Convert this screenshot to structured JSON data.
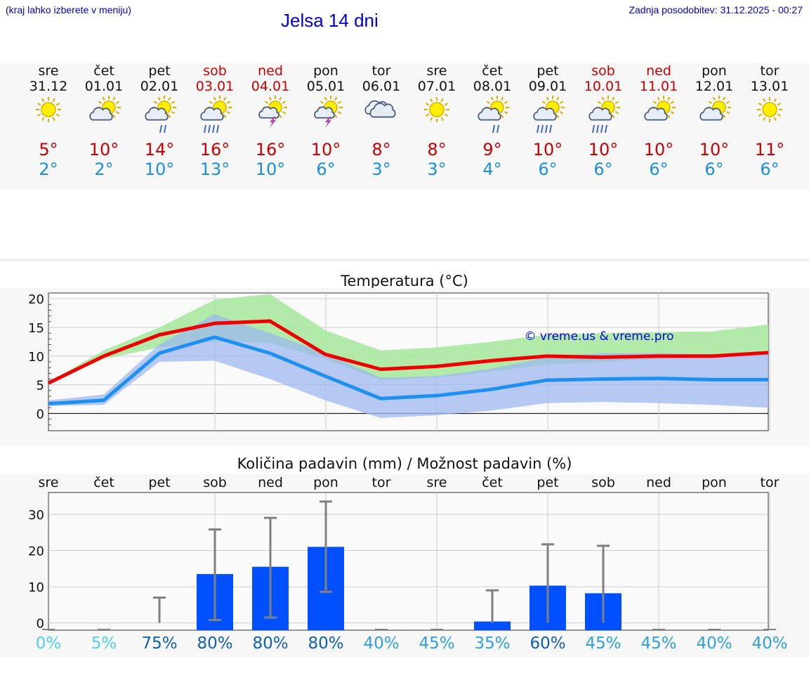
{
  "header": {
    "menu_hint": "(kraj lahko izberete v meniju)",
    "title": "Jelsa 14 dni",
    "updated": "Zadnja posodobitev: 31.12.2025 - 00:27"
  },
  "colors": {
    "weekday": "#111111",
    "weekend": "#cc0000",
    "tmax": "#cc0000",
    "tmin": "#1a8fe0",
    "temp_line_max": "#ee0000",
    "temp_line_min": "#2090f0",
    "band_max": "#a8e8a0",
    "band_min": "#9db8f0",
    "bar": "#0050ff",
    "errbar": "#808080"
  },
  "days": [
    {
      "dow": "sre",
      "date": "31.12",
      "weekend": false,
      "icon": "sun-icon",
      "tmax": "5°",
      "tmin": "2°"
    },
    {
      "dow": "čet",
      "date": "01.01",
      "weekend": false,
      "icon": "sun-cloud-icon",
      "tmax": "10°",
      "tmin": "2°"
    },
    {
      "dow": "pet",
      "date": "02.01",
      "weekend": false,
      "icon": "sun-cloud-rain-icon",
      "tmax": "14°",
      "tmin": "10°"
    },
    {
      "dow": "sob",
      "date": "03.01",
      "weekend": true,
      "icon": "sun-cloud-heavy-rain-icon",
      "tmax": "16°",
      "tmin": "13°"
    },
    {
      "dow": "ned",
      "date": "04.01",
      "weekend": true,
      "icon": "sun-thunder-icon",
      "tmax": "16°",
      "tmin": "10°"
    },
    {
      "dow": "pon",
      "date": "05.01",
      "weekend": false,
      "icon": "sun-thunder-icon",
      "tmax": "10°",
      "tmin": "6°"
    },
    {
      "dow": "tor",
      "date": "06.01",
      "weekend": false,
      "icon": "clouds-icon",
      "tmax": "8°",
      "tmin": "3°"
    },
    {
      "dow": "sre",
      "date": "07.01",
      "weekend": false,
      "icon": "sun-icon",
      "tmax": "8°",
      "tmin": "3°"
    },
    {
      "dow": "čet",
      "date": "08.01",
      "weekend": false,
      "icon": "sun-cloud-rain-icon",
      "tmax": "9°",
      "tmin": "4°"
    },
    {
      "dow": "pet",
      "date": "09.01",
      "weekend": false,
      "icon": "sun-cloud-heavy-rain-icon",
      "tmax": "10°",
      "tmin": "6°"
    },
    {
      "dow": "sob",
      "date": "10.01",
      "weekend": true,
      "icon": "sun-cloud-heavy-rain-icon",
      "tmax": "10°",
      "tmin": "6°"
    },
    {
      "dow": "ned",
      "date": "11.01",
      "weekend": true,
      "icon": "sun-cloud-icon",
      "tmax": "10°",
      "tmin": "6°"
    },
    {
      "dow": "pon",
      "date": "12.01",
      "weekend": false,
      "icon": "sun-cloud-icon",
      "tmax": "10°",
      "tmin": "6°"
    },
    {
      "dow": "tor",
      "date": "13.01",
      "weekend": false,
      "icon": "sun-icon",
      "tmax": "11°",
      "tmin": "6°"
    }
  ],
  "chart_data": [
    {
      "type": "line",
      "title": "Temperatura (°C)",
      "watermark": "© vreme.us & vreme.pro",
      "x": [
        "31.12",
        "01.01",
        "02.01",
        "03.01",
        "04.01",
        "05.01",
        "06.01",
        "07.01",
        "08.01",
        "09.01",
        "10.01",
        "11.01",
        "12.01",
        "13.01"
      ],
      "ylim": [
        -3,
        21
      ],
      "yticks": [
        0,
        5,
        10,
        15,
        20
      ],
      "series": [
        {
          "name": "max",
          "values": [
            5.3,
            10,
            13.7,
            15.7,
            16.1,
            10.3,
            7.7,
            8.2,
            9.2,
            10,
            9.8,
            10,
            10,
            10.6
          ]
        },
        {
          "name": "min",
          "values": [
            1.7,
            2.3,
            10.5,
            13.3,
            10.5,
            6.5,
            2.6,
            3.1,
            4.2,
            5.8,
            6,
            6.1,
            5.9,
            5.9
          ]
        }
      ],
      "bands": [
        {
          "name": "max range",
          "upper": [
            5.5,
            11,
            15,
            19.8,
            20.8,
            14.5,
            11,
            11.5,
            12.5,
            13.7,
            14,
            14.2,
            14.3,
            15.5
          ],
          "lower": [
            5.3,
            9.5,
            11.5,
            12.5,
            12.3,
            9.5,
            5.8,
            6.3,
            7.3,
            8.5,
            9,
            9.5,
            9.8,
            10.3
          ]
        },
        {
          "name": "min range",
          "upper": [
            2.3,
            3.3,
            12,
            17.3,
            14,
            10.5,
            6.2,
            6.5,
            7.8,
            9.8,
            10.5,
            10.5,
            10.3,
            10.3
          ],
          "lower": [
            1.3,
            1.5,
            9,
            9.2,
            6,
            2.3,
            -0.8,
            -0.3,
            0.5,
            1.8,
            2,
            1.8,
            1.5,
            1
          ]
        }
      ]
    },
    {
      "type": "bar",
      "title": "Količina padavin (mm) / Možnost padavin (%)",
      "categories": [
        "sre",
        "čet",
        "pet",
        "sob",
        "ned",
        "pon",
        "tor",
        "sre",
        "čet",
        "pet",
        "sob",
        "ned",
        "pon",
        "tor"
      ],
      "values": [
        0,
        0,
        0,
        13.5,
        15.5,
        21,
        0,
        0,
        0.4,
        10.3,
        8.2,
        0,
        0,
        0
      ],
      "err_low": [
        0,
        0,
        0,
        0.8,
        1.5,
        8.6,
        0,
        0,
        0,
        0,
        0,
        0,
        0,
        0
      ],
      "err_high": [
        0,
        0,
        7,
        25.8,
        29,
        33.5,
        0,
        0,
        9,
        21.7,
        21.3,
        0,
        0,
        0
      ],
      "ylim": [
        -2,
        36
      ],
      "yticks": [
        0,
        10,
        20,
        30
      ],
      "probability": [
        "0%",
        "5%",
        "75%",
        "80%",
        "80%",
        "80%",
        "40%",
        "45%",
        "35%",
        "60%",
        "45%",
        "45%",
        "40%",
        "40%"
      ],
      "probability_colors": [
        "#50d0f0",
        "#50d0f0",
        "#1060b0",
        "#1060b0",
        "#1060b0",
        "#1060b0",
        "#30a0e0",
        "#30a0e0",
        "#30a0e0",
        "#1060b0",
        "#30a0e0",
        "#30a0e0",
        "#30a0e0",
        "#30a0e0"
      ]
    }
  ]
}
